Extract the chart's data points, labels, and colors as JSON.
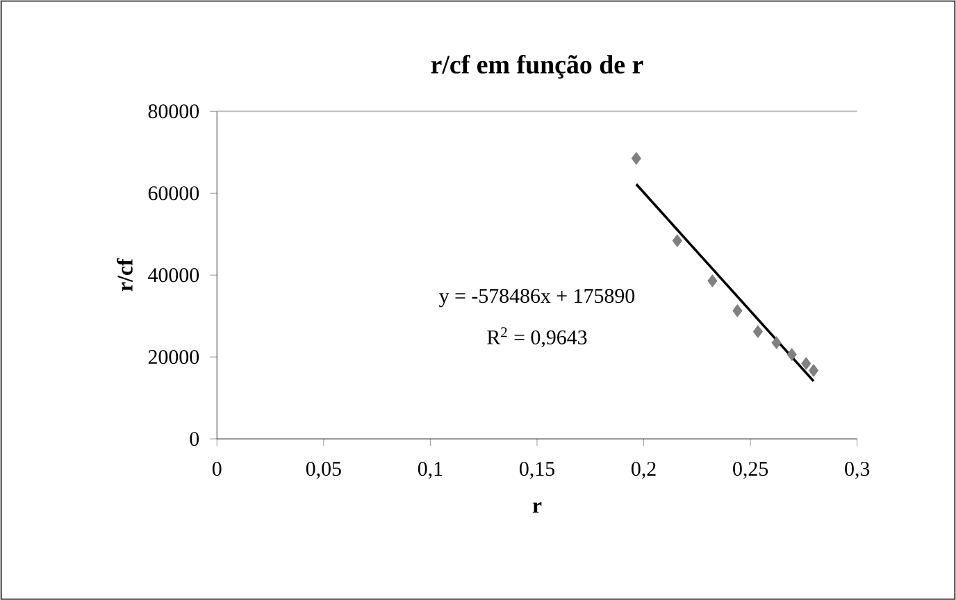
{
  "chart_data": {
    "type": "scatter",
    "title": "r/cf em função de r",
    "xlabel": "r",
    "ylabel": "r/cf",
    "xlim": [
      0,
      0.3
    ],
    "ylim": [
      0,
      80000
    ],
    "xticks": [
      0,
      {
        "value": 0.05,
        "label": "0,05"
      },
      {
        "value": 0.1,
        "label": "0,1"
      },
      {
        "value": 0.15,
        "label": "0,15"
      },
      {
        "value": 0.2,
        "label": "0,2"
      },
      {
        "value": 0.25,
        "label": "0,25"
      },
      {
        "value": 0.3,
        "label": "0,3"
      }
    ],
    "yticks": [
      0,
      20000,
      40000,
      60000,
      80000
    ],
    "grid": false,
    "series": [
      {
        "color": "#808080",
        "marker": "diamond",
        "x": [
          0.1965,
          0.2157,
          0.2322,
          0.2439,
          0.2535,
          0.2622,
          0.2694,
          0.2761,
          0.2796
        ],
        "values": [
          68500,
          48400,
          38600,
          31300,
          26200,
          23500,
          20600,
          18400,
          16700
        ]
      },
      {
        "type": "line",
        "color": "#000000",
        "marker": "none",
        "line_style": "solid",
        "x": [
          0.1965,
          0.2796
        ],
        "values": [
          62200,
          14100
        ]
      }
    ],
    "annotations": [
      "y = -578486x + 175890",
      "R$^{2}$ = 0,9643"
    ]
  }
}
